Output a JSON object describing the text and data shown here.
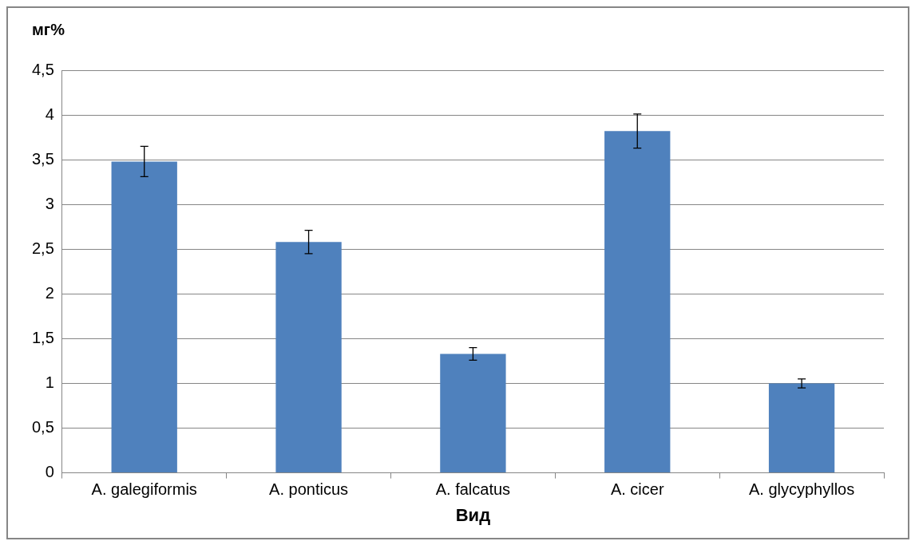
{
  "chart_data": {
    "type": "bar",
    "xlabel": "Вид",
    "ylabel": "мг%",
    "categories": [
      "A. galegiformis",
      "A. ponticus",
      "A. falcatus",
      "A. cicer",
      "A. glycyphyllos"
    ],
    "values": [
      3.48,
      2.58,
      1.33,
      3.82,
      1.0
    ],
    "errors": [
      0.17,
      0.13,
      0.07,
      0.19,
      0.05
    ],
    "color": "#4f81bd",
    "ylim": [
      0,
      4.5
    ],
    "yticks": [
      {
        "value": 0,
        "label": "0"
      },
      {
        "value": 0.5,
        "label": "0,5"
      },
      {
        "value": 1,
        "label": "1"
      },
      {
        "value": 1.5,
        "label": "1,5"
      },
      {
        "value": 2,
        "label": "2"
      },
      {
        "value": 2.5,
        "label": "2,5"
      },
      {
        "value": 3,
        "label": "3"
      },
      {
        "value": 3.5,
        "label": "3,5"
      },
      {
        "value": 4,
        "label": "4"
      },
      {
        "value": 4.5,
        "label": "4,5"
      }
    ],
    "grid": "y",
    "legend": false
  }
}
